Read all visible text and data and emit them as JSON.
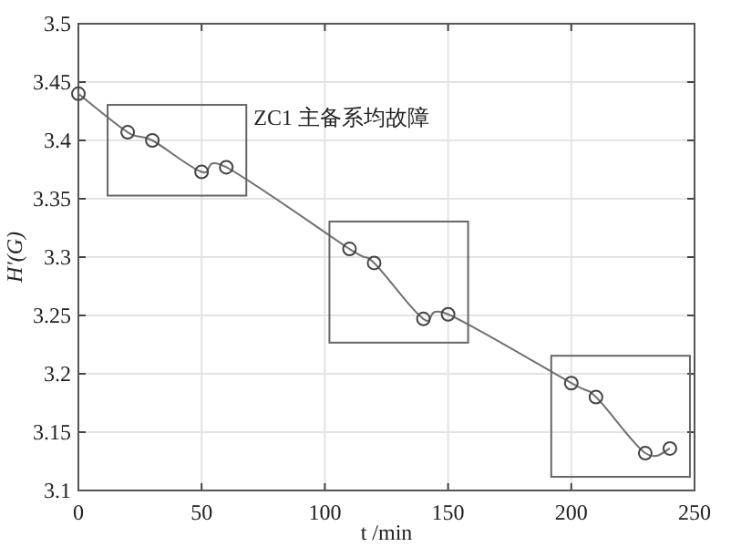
{
  "chart_data": {
    "type": "line",
    "xlabel": "t /min",
    "ylabel": "H′(G)",
    "x": [
      0,
      20,
      30,
      50,
      60,
      110,
      120,
      140,
      150,
      200,
      210,
      230,
      240
    ],
    "series": [
      {
        "color": "#707070",
        "values": [
          3.44,
          3.407,
          3.4,
          3.373,
          3.377,
          3.307,
          3.295,
          3.247,
          3.251,
          3.192,
          3.18,
          3.132,
          3.136
        ]
      }
    ],
    "annotations": [
      "ZC1 主备系均故障"
    ],
    "xlim": [
      0,
      250
    ],
    "xticks": [
      0,
      50,
      100,
      150,
      200,
      250
    ],
    "ylim": [
      3.1,
      3.5
    ],
    "yticks": [
      3.1,
      3.15,
      3.2,
      3.25,
      3.3,
      3.35,
      3.4,
      3.45,
      3.5
    ],
    "grid": true,
    "marker": "circle",
    "line_style": "solid"
  }
}
